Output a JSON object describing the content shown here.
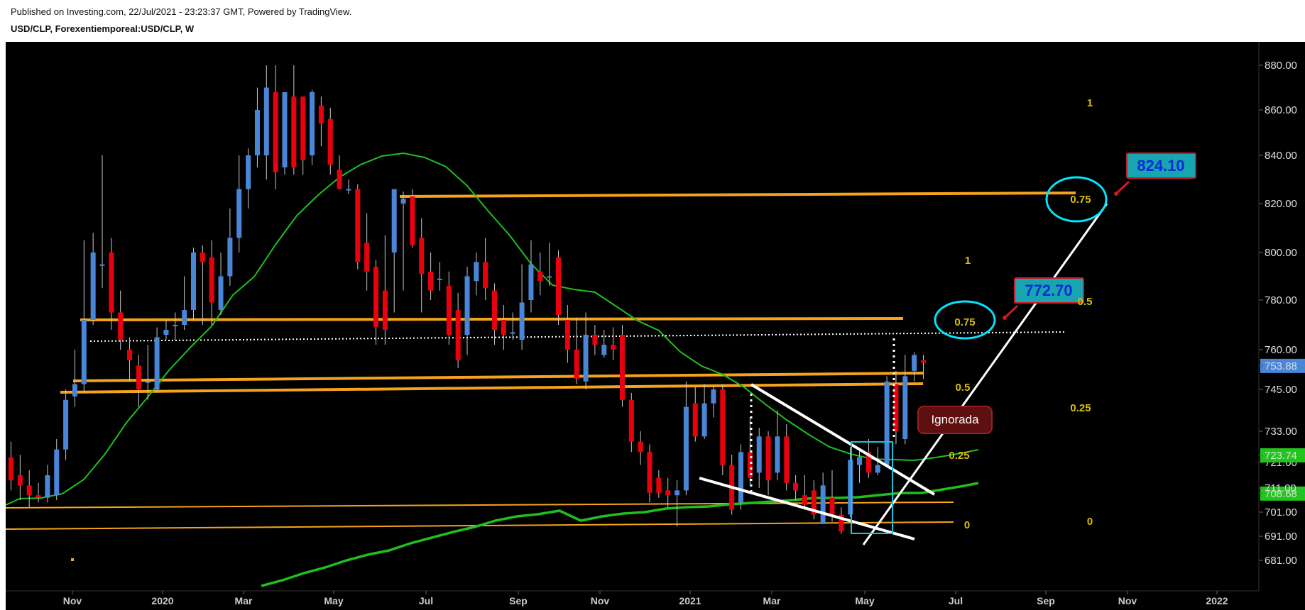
{
  "header": {
    "published": "Published on Investing.com, 22/Jul/2021 - 23:23:37 GMT, Powered by TradingView.",
    "symbol": "USD/CLP, Forexentiemporeal:USD/CLP, W"
  },
  "colors": {
    "background": "#000000",
    "bull": "#4a86d8",
    "bear": "#e8000c",
    "ma_fast": "#1fbf1f",
    "ma_slow": "#1fbf1f",
    "orange_lines": "#f5a31a",
    "fib": "#d4c10c",
    "circle": "#00e5ff",
    "callout_fill": "#17a6b0",
    "callout_border": "#cc1a2a"
  },
  "chart_data": {
    "type": "candlestick",
    "title": "USD/CLP, Forexentiemporeal:USD/CLP, W",
    "ylim": [
      671,
      886
    ],
    "y_ticks": [
      "681.00",
      "691.00",
      "701.00",
      "708.68",
      "711.00",
      "721.00",
      "723.74",
      "733.00",
      "745.00",
      "753.88",
      "760.00",
      "780.00",
      "800.00",
      "820.00",
      "840.00",
      "860.00",
      "880.00"
    ],
    "x_ticks": [
      "Nov",
      "2020",
      "Mar",
      "May",
      "Jul",
      "Sep",
      "Nov",
      "2021",
      "Mar",
      "May",
      "Jul",
      "Sep",
      "Nov",
      "2022"
    ],
    "price_tags": [
      {
        "value": "753.88",
        "color": "#4a86d8"
      },
      {
        "value": "723.74",
        "color": "#22c41e"
      },
      {
        "value": "708.68",
        "color": "#22c41e"
      }
    ],
    "candles_open_close_high_low": [
      [
        723,
        714,
        729,
        710
      ],
      [
        716,
        712,
        724,
        706
      ],
      [
        712,
        708,
        718,
        703
      ],
      [
        708,
        707,
        713,
        705
      ],
      [
        707,
        716,
        720,
        705
      ],
      [
        708,
        726,
        730,
        706
      ],
      [
        726,
        742,
        745,
        722
      ],
      [
        743,
        747,
        760,
        740
      ],
      [
        747,
        772,
        805,
        744
      ],
      [
        772,
        800,
        808,
        770
      ],
      [
        795,
        795,
        840,
        785
      ],
      [
        800,
        775,
        806,
        768
      ],
      [
        775,
        764,
        784,
        760
      ],
      [
        760,
        756,
        765,
        748
      ],
      [
        754,
        745,
        758,
        740
      ],
      [
        748,
        748,
        762,
        742
      ],
      [
        745,
        765,
        769,
        744
      ],
      [
        766,
        768,
        772,
        764
      ],
      [
        770,
        770,
        775,
        764
      ],
      [
        770,
        776,
        790,
        768
      ],
      [
        776,
        800,
        802,
        772
      ],
      [
        800,
        796,
        803,
        770
      ],
      [
        798,
        779,
        805,
        770
      ],
      [
        776,
        790,
        800,
        774
      ],
      [
        790,
        806,
        818,
        786
      ],
      [
        806,
        826,
        840,
        800
      ],
      [
        826,
        840,
        843,
        818
      ],
      [
        840,
        860,
        870,
        835
      ],
      [
        840,
        870,
        880,
        830
      ],
      [
        868,
        833,
        880,
        826
      ],
      [
        835,
        868,
        868,
        832
      ],
      [
        866,
        835,
        880,
        832
      ],
      [
        866,
        838,
        866,
        832
      ],
      [
        840,
        868,
        869,
        836
      ],
      [
        862,
        854,
        866,
        844
      ],
      [
        856,
        836,
        861,
        832
      ],
      [
        834,
        826,
        840,
        828
      ],
      [
        826,
        826,
        830,
        824
      ],
      [
        826,
        796,
        828,
        793
      ],
      [
        804,
        792,
        816,
        784
      ],
      [
        794,
        769,
        797,
        762
      ],
      [
        784,
        768,
        807,
        762
      ],
      [
        800,
        826,
        826,
        775
      ],
      [
        820,
        822,
        825,
        784
      ],
      [
        823,
        803,
        826,
        802
      ],
      [
        806,
        791,
        814,
        775
      ],
      [
        792,
        784,
        800,
        780
      ],
      [
        789,
        789,
        796,
        784
      ],
      [
        786,
        766,
        792,
        762
      ],
      [
        776,
        756,
        783,
        753
      ],
      [
        766,
        790,
        794,
        758
      ],
      [
        788,
        796,
        800,
        782
      ],
      [
        796,
        785,
        806,
        780
      ],
      [
        784,
        768,
        787,
        762
      ],
      [
        772,
        766,
        778,
        760
      ],
      [
        767,
        767,
        775,
        764
      ],
      [
        764,
        779,
        795,
        760
      ],
      [
        780,
        795,
        805,
        775
      ],
      [
        792,
        788,
        800,
        782
      ],
      [
        790,
        790,
        804,
        786
      ],
      [
        798,
        774,
        801,
        770
      ],
      [
        772,
        760,
        778,
        755
      ],
      [
        760,
        749,
        773,
        747
      ],
      [
        748,
        766,
        775,
        745
      ],
      [
        766,
        762,
        770,
        758
      ],
      [
        758,
        762,
        768,
        757
      ],
      [
        762,
        760,
        769,
        756
      ],
      [
        766,
        742,
        770,
        740
      ],
      [
        742,
        729,
        744,
        725
      ],
      [
        729,
        725,
        733,
        720
      ],
      [
        725,
        709,
        728,
        705
      ],
      [
        715,
        709,
        718,
        707
      ],
      [
        710,
        708,
        715,
        703
      ],
      [
        708,
        710,
        714,
        695
      ],
      [
        710,
        740,
        748,
        708
      ],
      [
        741,
        731,
        746,
        729
      ],
      [
        731,
        741,
        747,
        730
      ],
      [
        741,
        745,
        746,
        737
      ],
      [
        745,
        720,
        747,
        716
      ],
      [
        720,
        702,
        724,
        700
      ],
      [
        705,
        725,
        728,
        702
      ],
      [
        725,
        715,
        737,
        712
      ],
      [
        717,
        731,
        734,
        711
      ],
      [
        731,
        714,
        733,
        708
      ],
      [
        717,
        731,
        739,
        714
      ],
      [
        731,
        713,
        735,
        710
      ],
      [
        713,
        710,
        716,
        706
      ],
      [
        708,
        704,
        716,
        702
      ],
      [
        710,
        700,
        714,
        698
      ],
      [
        696,
        712,
        717,
        696
      ],
      [
        707,
        700,
        718,
        697
      ],
      [
        700,
        693,
        703,
        692
      ],
      [
        700,
        722,
        727,
        699
      ],
      [
        720,
        723,
        726,
        713
      ],
      [
        725,
        717,
        730,
        715
      ],
      [
        717,
        720,
        727,
        716
      ],
      [
        720,
        748,
        750,
        719
      ],
      [
        747,
        733,
        752,
        728
      ],
      [
        730,
        750,
        758,
        728
      ],
      [
        752,
        758,
        759,
        748
      ],
      [
        756,
        755,
        758,
        749
      ]
    ],
    "series": [
      {
        "name": "",
        "values": []
      }
    ],
    "annotations": {
      "fib_levels_upper": [
        "1",
        "0.75",
        "0.5",
        "0.25",
        "0"
      ],
      "fib_levels_lower": [
        "1",
        "0.75",
        "0.5",
        "0.25",
        "0"
      ],
      "targets": [
        "824.10",
        "772.70"
      ],
      "label_ignored": "Ignorada"
    }
  }
}
